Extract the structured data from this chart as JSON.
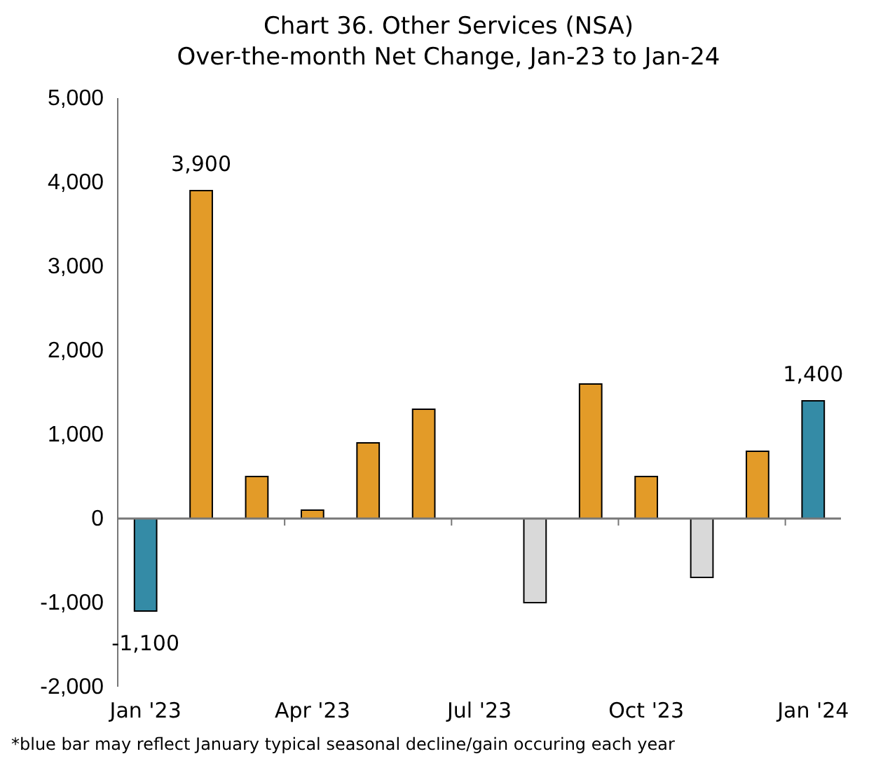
{
  "chart_data": {
    "type": "bar",
    "title": "Chart 36. Other Services (NSA)",
    "subtitle": "Over-the-month Net Change, Jan-23 to Jan-24",
    "categories": [
      "Jan '23",
      null,
      null,
      "Apr '23",
      null,
      null,
      "Jul '23",
      null,
      null,
      "Oct '23",
      null,
      null,
      "Jan '24"
    ],
    "values": [
      -1100,
      3900,
      500,
      100,
      900,
      1300,
      0,
      -1000,
      1600,
      500,
      -700,
      800,
      1400
    ],
    "colors": [
      "#348ba6",
      "#e39b28",
      "#e39b28",
      "#e39b28",
      "#e39b28",
      "#e39b28",
      "#e39b28",
      "#d9d9d9",
      "#e39b28",
      "#e39b28",
      "#d9d9d9",
      "#e39b28",
      "#348ba6"
    ],
    "value_labels": [
      "-1,100",
      "3,900",
      null,
      null,
      null,
      null,
      null,
      null,
      null,
      null,
      null,
      null,
      "1,400"
    ],
    "ylim": [
      -2000,
      5000
    ],
    "yticks": [
      {
        "value": -2000,
        "label": "-2,000"
      },
      {
        "value": -1000,
        "label": "-1,000"
      },
      0,
      {
        "value": 1000,
        "label": "1,000"
      },
      {
        "value": 2000,
        "label": "2,000"
      },
      {
        "value": 3000,
        "label": "3,000"
      },
      {
        "value": 4000,
        "label": "4,000"
      },
      {
        "value": 5000,
        "label": "5,000"
      }
    ],
    "annotations": [
      "*blue bar may reflect January typical seasonal decline/gain occuring each year"
    ]
  }
}
